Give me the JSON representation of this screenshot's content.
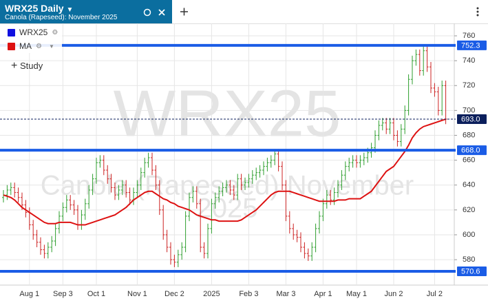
{
  "header": {
    "title": "WRX25 Daily",
    "subtitle": "Canola (Rapeseed): November 2025"
  },
  "toolbar": {
    "study": "Study"
  },
  "chart_data": {
    "type": "ohlc",
    "watermark": [
      "WRX25",
      "Canola (Rapeseed) November",
      "2025"
    ],
    "categories": [
      null,
      null,
      null,
      null,
      null,
      null,
      null,
      "Aug 1",
      null,
      null,
      null,
      null,
      null,
      null,
      null,
      null,
      "Sep 3",
      null,
      null,
      null,
      null,
      null,
      null,
      null,
      null,
      "Oct 1",
      null,
      null,
      null,
      null,
      null,
      null,
      null,
      null,
      null,
      null,
      "Nov 1",
      null,
      null,
      null,
      null,
      null,
      null,
      null,
      null,
      null,
      "Dec 2",
      null,
      null,
      null,
      null,
      null,
      null,
      null,
      null,
      null,
      "2025",
      null,
      null,
      null,
      null,
      null,
      null,
      null,
      null,
      null,
      "Feb 3",
      null,
      null,
      null,
      null,
      null,
      null,
      null,
      null,
      null,
      "Mar 3",
      null,
      null,
      null,
      null,
      null,
      null,
      null,
      null,
      null,
      "Apr 1",
      null,
      null,
      null,
      null,
      null,
      null,
      null,
      null,
      "May 1",
      null,
      null,
      null,
      null,
      null,
      null,
      null,
      null,
      null,
      "Jun 2",
      null,
      null,
      null,
      null,
      null,
      null,
      null,
      null,
      null,
      null,
      "Jul 2",
      null,
      null,
      null
    ],
    "ylim": [
      559,
      765
    ],
    "yticks": [
      580,
      600,
      620,
      640,
      660,
      680,
      700,
      720,
      740,
      760
    ],
    "grid": true,
    "up_color": "#2e9e2e",
    "down_color": "#cc2222",
    "hlines": [
      752.3,
      {
        "value": 668,
        "label": "668.0"
      },
      570.6
    ],
    "hline_color": "#1a5ce6",
    "price_line": {
      "value": 693,
      "label": "693.0"
    },
    "price_line_color": "#0b1f5c",
    "series": [
      {
        "name": "WRX25",
        "color": "#1010e0",
        "open": [
          630,
          632,
          636,
          638,
          634,
          630,
          624,
          618,
          608,
          600,
          594,
          588,
          585,
          590,
          595,
          605,
          615,
          622,
          628,
          624,
          620,
          608,
          616,
          625,
          636,
          645,
          658,
          660,
          652,
          645,
          638,
          632,
          636,
          640,
          634,
          628,
          634,
          640,
          650,
          658,
          662,
          652,
          640,
          620,
          600,
          590,
          580,
          578,
          584,
          590,
          615,
          630,
          635,
          625,
          590,
          585,
          605,
          625,
          630,
          635,
          638,
          640,
          636,
          632,
          645,
          640,
          642,
          645,
          648,
          650,
          652,
          655,
          658,
          660,
          665,
          655,
          640,
          615,
          605,
          600,
          598,
          590,
          585,
          583,
          590,
          605,
          615,
          625,
          632,
          628,
          634,
          640,
          648,
          655,
          658,
          660,
          658,
          660,
          662,
          666,
          670,
          680,
          688,
          690,
          685,
          690,
          680,
          675,
          685,
          700,
          725,
          740,
          745,
          732,
          748,
          735,
          718,
          715,
          700,
          720
        ],
        "high": [
          636,
          640,
          642,
          642,
          638,
          634,
          628,
          622,
          612,
          604,
          598,
          592,
          594,
          599,
          609,
          619,
          626,
          632,
          632,
          628,
          624,
          620,
          629,
          640,
          649,
          662,
          664,
          664,
          656,
          649,
          642,
          640,
          644,
          644,
          638,
          638,
          644,
          654,
          662,
          666,
          666,
          656,
          644,
          624,
          604,
          594,
          584,
          588,
          594,
          619,
          634,
          639,
          639,
          629,
          594,
          609,
          629,
          634,
          639,
          642,
          644,
          644,
          640,
          649,
          649,
          646,
          649,
          652,
          654,
          656,
          659,
          662,
          664,
          669,
          669,
          659,
          644,
          619,
          609,
          604,
          602,
          594,
          589,
          594,
          609,
          619,
          629,
          636,
          636,
          638,
          644,
          652,
          659,
          662,
          664,
          664,
          664,
          666,
          670,
          674,
          684,
          692,
          694,
          694,
          694,
          694,
          684,
          689,
          704,
          729,
          744,
          749,
          749,
          752.3,
          752,
          739,
          722,
          719,
          724,
          724
        ],
        "low": [
          626,
          628,
          632,
          630,
          626,
          620,
          614,
          604,
          596,
          590,
          584,
          581,
          581,
          586,
          591,
          601,
          611,
          618,
          620,
          616,
          604,
          604,
          612,
          621,
          632,
          641,
          654,
          648,
          641,
          634,
          628,
          628,
          632,
          630,
          624,
          624,
          630,
          636,
          646,
          654,
          648,
          636,
          616,
          596,
          586,
          576,
          574,
          574,
          580,
          586,
          611,
          626,
          621,
          586,
          581,
          581,
          601,
          621,
          626,
          631,
          634,
          632,
          628,
          628,
          636,
          636,
          638,
          641,
          644,
          646,
          648,
          651,
          654,
          656,
          651,
          636,
          611,
          601,
          596,
          594,
          586,
          581,
          579,
          579,
          586,
          601,
          611,
          621,
          624,
          624,
          630,
          636,
          644,
          651,
          654,
          654,
          654,
          656,
          658,
          662,
          666,
          676,
          684,
          681,
          681,
          676,
          671,
          671,
          681,
          696,
          721,
          736,
          728,
          728,
          731,
          714,
          711,
          696,
          696,
          689
        ],
        "close": [
          632,
          636,
          638,
          634,
          630,
          624,
          618,
          608,
          600,
          594,
          588,
          585,
          590,
          595,
          605,
          615,
          622,
          628,
          624,
          620,
          608,
          616,
          625,
          636,
          645,
          658,
          660,
          652,
          645,
          638,
          632,
          636,
          640,
          634,
          628,
          634,
          640,
          650,
          658,
          662,
          652,
          640,
          620,
          600,
          590,
          580,
          578,
          584,
          590,
          615,
          630,
          635,
          625,
          590,
          585,
          605,
          625,
          630,
          635,
          638,
          640,
          636,
          632,
          645,
          640,
          642,
          645,
          648,
          650,
          652,
          655,
          658,
          660,
          665,
          655,
          640,
          615,
          605,
          600,
          598,
          590,
          585,
          583,
          590,
          605,
          615,
          625,
          632,
          628,
          634,
          640,
          648,
          655,
          658,
          660,
          658,
          660,
          662,
          666,
          670,
          680,
          688,
          690,
          685,
          690,
          680,
          675,
          685,
          700,
          725,
          740,
          745,
          732,
          748,
          735,
          718,
          715,
          700,
          720,
          693
        ]
      },
      {
        "name": "MA",
        "color": "#dd1111",
        "values": [
          632,
          631,
          630,
          628,
          625,
          622,
          620,
          618,
          616,
          614,
          612,
          610,
          609,
          609,
          609,
          610,
          610,
          610,
          610,
          609,
          608,
          608,
          608,
          609,
          610,
          611,
          612,
          613,
          614,
          615,
          616,
          618,
          620,
          622,
          625,
          628,
          630,
          632,
          634,
          635,
          635,
          633,
          631,
          629,
          628,
          626,
          625,
          623,
          622,
          621,
          620,
          618,
          616,
          615,
          614,
          613,
          612,
          612,
          611,
          611,
          611,
          611,
          611,
          611,
          612,
          614,
          616,
          618,
          620,
          623,
          626,
          629,
          632,
          634,
          635,
          635,
          635,
          635,
          634,
          633,
          632,
          631,
          630,
          629,
          628,
          627,
          627,
          627,
          627,
          627,
          628,
          628,
          628,
          629,
          629,
          629,
          629,
          631,
          633,
          635,
          639,
          643,
          647,
          651,
          653,
          655,
          659,
          663,
          667,
          672,
          678,
          682,
          685,
          687,
          688,
          689,
          690,
          691,
          692,
          693
        ]
      }
    ]
  }
}
